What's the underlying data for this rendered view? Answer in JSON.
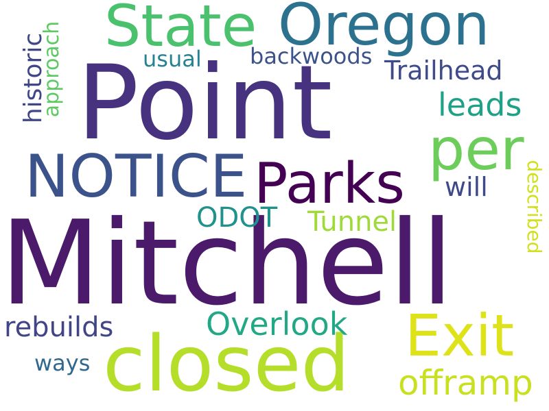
{
  "words": {
    "mitchell": {
      "text": "Mitchell",
      "color": "#4b1a6a"
    },
    "point": {
      "text": "Point",
      "color": "#46327e"
    },
    "closed": {
      "text": "closed",
      "color": "#b5de2b"
    },
    "oregon": {
      "text": "Oregon",
      "color": "#2c728e"
    },
    "state": {
      "text": "State",
      "color": "#4ac16d"
    },
    "notice": {
      "text": "NOTICE",
      "color": "#3b528b"
    },
    "parks": {
      "text": "Parks",
      "color": "#440154"
    },
    "per": {
      "text": "per",
      "color": "#6ccd5a"
    },
    "exit": {
      "text": "Exit",
      "color": "#dde318"
    },
    "offramp": {
      "text": "offramp",
      "color": "#c8e020"
    },
    "overlook": {
      "text": "Overlook",
      "color": "#22a884"
    },
    "trailhead": {
      "text": "Trailhead",
      "color": "#3e4a89"
    },
    "leads": {
      "text": "leads",
      "color": "#1fa187"
    },
    "tunnel": {
      "text": "Tunnel",
      "color": "#a0da39"
    },
    "odot": {
      "text": "ODOT",
      "color": "#21918c"
    },
    "will": {
      "text": "will",
      "color": "#3e4989"
    },
    "rebuilds": {
      "text": "rebuilds",
      "color": "#414487"
    },
    "ways": {
      "text": "ways",
      "color": "#31688e"
    },
    "usual": {
      "text": "usual",
      "color": "#26828e"
    },
    "backwoods": {
      "text": "backwoods",
      "color": "#3b528b"
    },
    "historic": {
      "text": "historic",
      "color": "#3f4788"
    },
    "approach": {
      "text": "approach",
      "color": "#5ec962"
    },
    "described": {
      "text": "described",
      "color": "#d0e11c"
    }
  }
}
